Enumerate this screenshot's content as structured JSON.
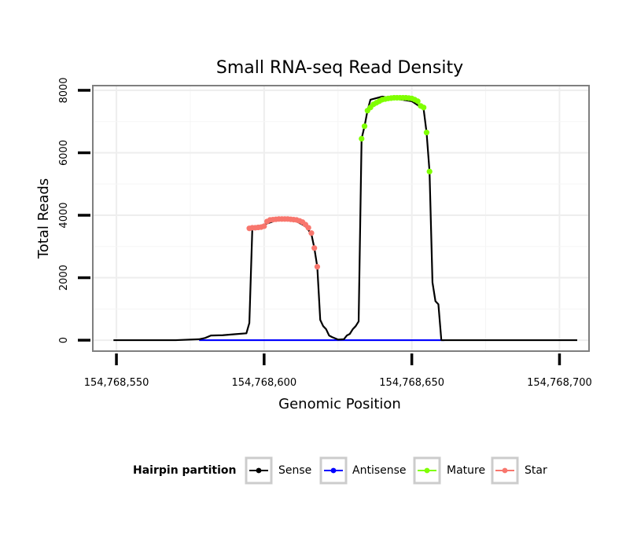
{
  "chart_data": {
    "type": "line",
    "title": "Small RNA-seq Read Density",
    "xlabel": "Genomic Position",
    "ylabel": "Total Reads",
    "xlim": [
      154768542,
      154768710
    ],
    "ylim": [
      -350,
      8150
    ],
    "x_ticks": [
      154768550,
      154768600,
      154768650,
      154768700
    ],
    "x_tick_labels": [
      "154,768,550",
      "154,768,600",
      "154,768,650",
      "154,768,700"
    ],
    "y_ticks": [
      0,
      2000,
      4000,
      6000,
      8000
    ],
    "y_tick_labels": [
      "0",
      "2000",
      "4000",
      "6000",
      "8000"
    ],
    "legend": {
      "title": "Hairpin partition",
      "position": "bottom",
      "entries": [
        {
          "label": "Sense",
          "color": "#000000"
        },
        {
          "label": "Antisense",
          "color": "#0000ff"
        },
        {
          "label": "Mature",
          "color": "#7fff00"
        },
        {
          "label": "Star",
          "color": "#f8766d"
        }
      ]
    },
    "series": [
      {
        "name": "Sense",
        "color": "#000000",
        "x": [
          154768549,
          154768560,
          154768570,
          154768578,
          154768580,
          154768582,
          154768586,
          154768590,
          154768594,
          154768595,
          154768596,
          154768597,
          154768605,
          154768610,
          154768614,
          154768616,
          154768617,
          154768618,
          154768619,
          154768620,
          154768621,
          154768622,
          154768623,
          154768625,
          154768627,
          154768628,
          154768629,
          154768630,
          154768631,
          154768632,
          154768633,
          154768634,
          154768635,
          154768636,
          154768640,
          154768650,
          154768654,
          154768655,
          154768656,
          154768657,
          154768658,
          154768659,
          154768660,
          154768661,
          154768662,
          154768663,
          154768668,
          154768680,
          154768706
        ],
        "y": [
          0,
          0,
          0,
          30,
          70,
          150,
          160,
          190,
          220,
          550,
          3550,
          3600,
          3870,
          3850,
          3650,
          3400,
          2950,
          2350,
          650,
          450,
          350,
          150,
          100,
          20,
          30,
          150,
          200,
          350,
          450,
          600,
          6450,
          6850,
          7350,
          7700,
          7800,
          7650,
          7400,
          6650,
          5400,
          1850,
          1250,
          1150,
          0,
          0,
          0,
          0,
          0,
          0,
          0
        ]
      },
      {
        "name": "Antisense",
        "color": "#0000ff",
        "x": [
          154768578,
          154768661
        ],
        "y": [
          0,
          0
        ]
      },
      {
        "name": "Mature",
        "color": "#7fff00",
        "x": [
          154768633,
          154768634,
          154768635,
          154768636,
          154768637,
          154768638,
          154768639,
          154768640,
          154768641,
          154768642,
          154768643,
          154768644,
          154768645,
          154768646,
          154768647,
          154768648,
          154768649,
          154768650,
          154768651,
          154768652,
          154768653,
          154768654,
          154768655,
          154768656
        ],
        "y": [
          6450,
          6850,
          7350,
          7450,
          7550,
          7600,
          7650,
          7700,
          7720,
          7740,
          7750,
          7760,
          7760,
          7760,
          7760,
          7760,
          7750,
          7740,
          7700,
          7650,
          7500,
          7450,
          6650,
          5400
        ]
      },
      {
        "name": "Star",
        "color": "#f8766d",
        "x": [
          154768595,
          154768596,
          154768597,
          154768598,
          154768599,
          154768600,
          154768601,
          154768602,
          154768603,
          154768604,
          154768605,
          154768606,
          154768607,
          154768608,
          154768609,
          154768610,
          154768611,
          154768612,
          154768613,
          154768614,
          154768615,
          154768616,
          154768617,
          154768618
        ],
        "y": [
          3580,
          3600,
          3600,
          3610,
          3620,
          3650,
          3800,
          3850,
          3860,
          3870,
          3880,
          3880,
          3880,
          3880,
          3870,
          3860,
          3850,
          3820,
          3780,
          3700,
          3600,
          3430,
          2950,
          2350
        ]
      }
    ]
  }
}
